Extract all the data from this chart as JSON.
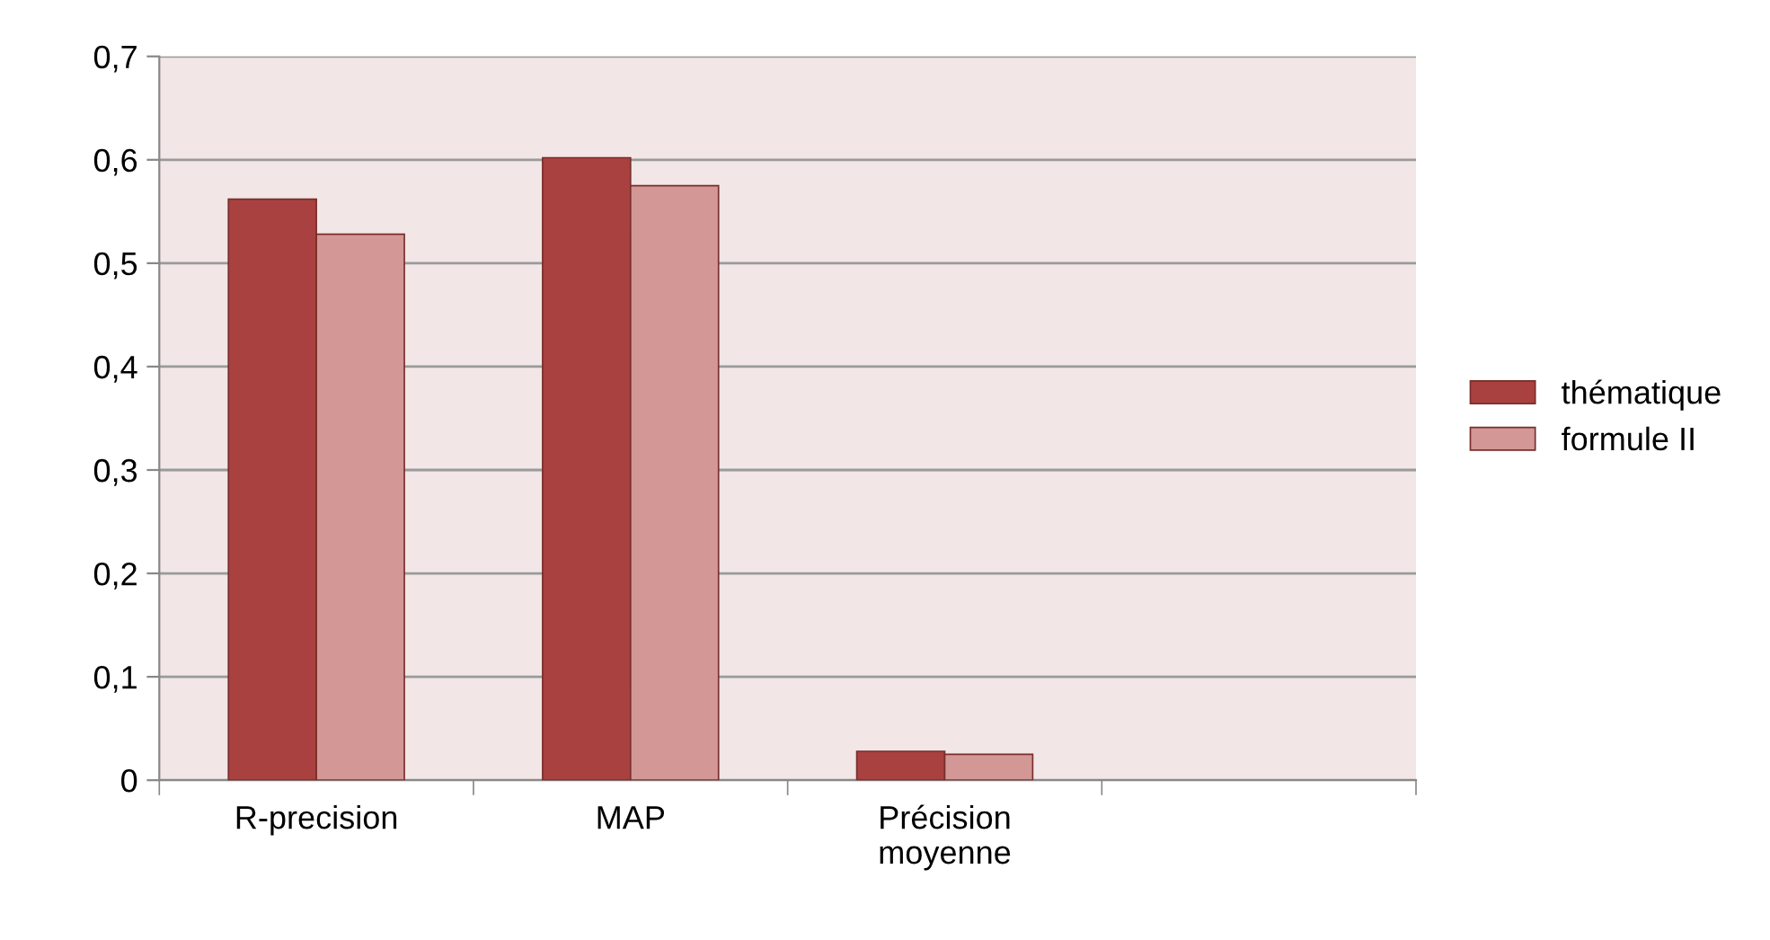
{
  "chart_data": {
    "type": "bar",
    "categories": [
      "R-precision",
      "MAP",
      "Précision\nmoyenne",
      null
    ],
    "series": [
      {
        "name": "thématique",
        "color": "#a8413f",
        "values": [
          0.562,
          0.602,
          0.028,
          null
        ]
      },
      {
        "name": "formule II",
        "color": "#d39795",
        "values": [
          0.528,
          0.575,
          0.025,
          null
        ]
      }
    ],
    "ylim": [
      0,
      0.7
    ],
    "yticks": [
      {
        "value": 0,
        "label": "0"
      },
      {
        "value": 0.1,
        "label": "0,1"
      },
      {
        "value": 0.2,
        "label": "0,2"
      },
      {
        "value": 0.3,
        "label": "0,3"
      },
      {
        "value": 0.4,
        "label": "0,4"
      },
      {
        "value": 0.5,
        "label": "0,5"
      },
      {
        "value": 0.6,
        "label": "0,6"
      },
      {
        "value": 0.7,
        "label": "0,7"
      }
    ],
    "grid": "y",
    "legend": "right"
  }
}
